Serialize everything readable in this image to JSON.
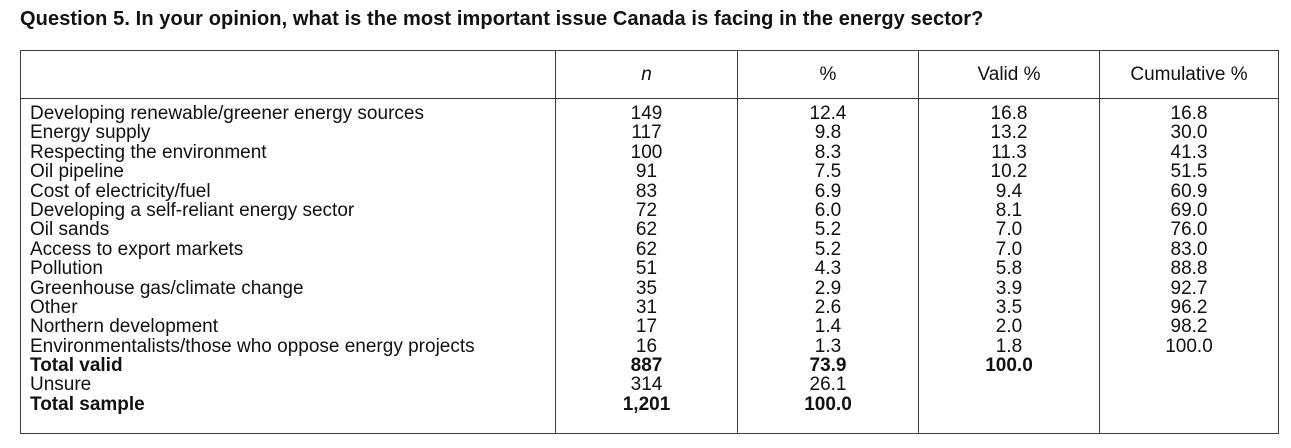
{
  "title": "Question 5. In your opinion, what is the most important issue Canada is facing in the energy sector?",
  "headers": {
    "label": "",
    "n": "n",
    "pct": "%",
    "valid": "Valid %",
    "cumulative": "Cumulative %"
  },
  "rows": [
    {
      "label": "Developing renewable/greener energy sources",
      "n": "149",
      "pct": "12.4",
      "valid": "16.8",
      "cumulative": "16.8",
      "bold": false
    },
    {
      "label": "Energy supply",
      "n": "117",
      "pct": "9.8",
      "valid": "13.2",
      "cumulative": "30.0",
      "bold": false
    },
    {
      "label": "Respecting the environment",
      "n": "100",
      "pct": "8.3",
      "valid": "11.3",
      "cumulative": "41.3",
      "bold": false
    },
    {
      "label": "Oil pipeline",
      "n": "91",
      "pct": "7.5",
      "valid": "10.2",
      "cumulative": "51.5",
      "bold": false
    },
    {
      "label": "Cost of electricity/fuel",
      "n": "83",
      "pct": "6.9",
      "valid": "9.4",
      "cumulative": "60.9",
      "bold": false
    },
    {
      "label": "Developing a self-reliant energy sector",
      "n": "72",
      "pct": "6.0",
      "valid": "8.1",
      "cumulative": "69.0",
      "bold": false
    },
    {
      "label": "Oil sands",
      "n": "62",
      "pct": "5.2",
      "valid": "7.0",
      "cumulative": "76.0",
      "bold": false
    },
    {
      "label": "Access to export markets",
      "n": "62",
      "pct": "5.2",
      "valid": "7.0",
      "cumulative": "83.0",
      "bold": false
    },
    {
      "label": "Pollution",
      "n": "51",
      "pct": "4.3",
      "valid": "5.8",
      "cumulative": "88.8",
      "bold": false
    },
    {
      "label": "Greenhouse gas/climate change",
      "n": "35",
      "pct": "2.9",
      "valid": "3.9",
      "cumulative": "92.7",
      "bold": false
    },
    {
      "label": "Other",
      "n": "31",
      "pct": "2.6",
      "valid": "3.5",
      "cumulative": "96.2",
      "bold": false
    },
    {
      "label": "Northern development",
      "n": "17",
      "pct": "1.4",
      "valid": "2.0",
      "cumulative": "98.2",
      "bold": false
    },
    {
      "label": "Environmentalists/those who oppose energy projects",
      "n": "16",
      "pct": "1.3",
      "valid": "1.8",
      "cumulative": "100.0",
      "bold": false
    },
    {
      "label": "Total valid",
      "n": "887",
      "pct": "73.9",
      "valid": "100.0",
      "cumulative": "",
      "bold": true
    },
    {
      "label": "Unsure",
      "n": "314",
      "pct": "26.1",
      "valid": "",
      "cumulative": "",
      "bold": false
    },
    {
      "label": "Total sample",
      "n": "1,201",
      "pct": "100.0",
      "valid": "",
      "cumulative": "",
      "bold": true
    }
  ]
}
